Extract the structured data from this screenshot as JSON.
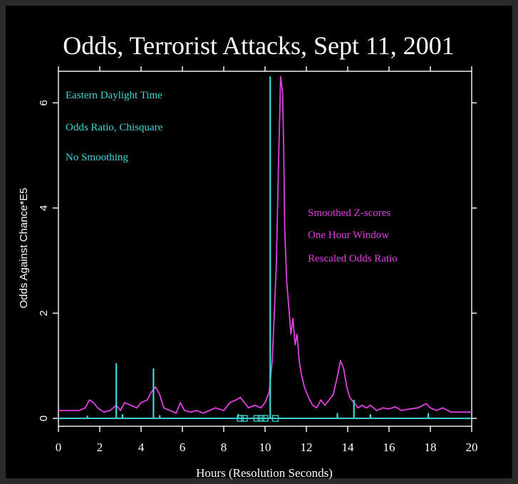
{
  "chart_data": {
    "type": "line",
    "title": "Odds, Terrorist Attacks, Sept 11, 2001",
    "xlabel": "Hours (Resolution Seconds)",
    "ylabel": "Odds Against Chance*E5",
    "xlim": [
      0,
      20
    ],
    "ylim": [
      -0.15,
      6.6
    ],
    "x_ticks": [
      0,
      2,
      4,
      6,
      8,
      10,
      12,
      14,
      16,
      18,
      20
    ],
    "x_tick_labels": [
      "0",
      "2",
      "4",
      "6",
      "8",
      "10",
      "12",
      "14",
      "16",
      "18",
      "20"
    ],
    "y_ticks": [
      0,
      2,
      4,
      6
    ],
    "y_tick_labels": [
      "0",
      "2",
      "4",
      "6"
    ],
    "grid": false,
    "annotations_left": [
      "Eastern Daylight Time",
      "Odds Ratio, Chisquare",
      "No Smoothing"
    ],
    "annotations_right": [
      "Smoothed Z-scores",
      "One Hour Window",
      "Rescaled Odds Ratio"
    ],
    "colors": {
      "background": "#000000",
      "odds_ratio": "#3fd6d6",
      "smoothed": "#e040e0",
      "axis": "#ffffff"
    },
    "series": [
      {
        "type": "spikes",
        "color": "#3fd6d6",
        "x": [
          1.4,
          2.8,
          3.1,
          4.6,
          4.9,
          8.7,
          10.25,
          13.5,
          14.3,
          15.1,
          17.9
        ],
        "values": [
          0.05,
          1.05,
          0.08,
          0.95,
          0.06,
          0.08,
          6.5,
          0.1,
          0.35,
          0.08,
          0.1
        ]
      },
      {
        "type": "line",
        "color": "#e040e0",
        "x": [
          0,
          0.5,
          1.0,
          1.3,
          1.5,
          1.7,
          1.9,
          2.2,
          2.5,
          2.8,
          3.0,
          3.2,
          3.5,
          3.8,
          4.0,
          4.3,
          4.5,
          4.7,
          4.9,
          5.1,
          5.4,
          5.7,
          5.9,
          6.1,
          6.4,
          6.7,
          7.0,
          7.3,
          7.6,
          8.0,
          8.3,
          8.6,
          8.8,
          9.0,
          9.2,
          9.5,
          9.8,
          10.0,
          10.2,
          10.35,
          10.45,
          10.55,
          10.65,
          10.7,
          10.75,
          10.85,
          10.9,
          10.95,
          11.05,
          11.15,
          11.25,
          11.35,
          11.45,
          11.55,
          11.65,
          11.75,
          11.9,
          12.1,
          12.3,
          12.5,
          12.7,
          12.9,
          13.1,
          13.3,
          13.5,
          13.65,
          13.8,
          13.95,
          14.1,
          14.3,
          14.5,
          14.7,
          14.9,
          15.1,
          15.4,
          15.7,
          16.0,
          16.3,
          16.6,
          17.0,
          17.4,
          17.8,
          18.0,
          18.3,
          18.6,
          19.0,
          19.5,
          20.0
        ],
        "values": [
          0.15,
          0.15,
          0.15,
          0.2,
          0.35,
          0.3,
          0.2,
          0.12,
          0.15,
          0.25,
          0.15,
          0.3,
          0.25,
          0.2,
          0.3,
          0.35,
          0.5,
          0.6,
          0.45,
          0.2,
          0.15,
          0.1,
          0.3,
          0.15,
          0.12,
          0.15,
          0.1,
          0.15,
          0.2,
          0.15,
          0.3,
          0.35,
          0.4,
          0.3,
          0.2,
          0.25,
          0.2,
          0.3,
          0.5,
          1.1,
          2.0,
          3.0,
          4.8,
          5.6,
          6.5,
          6.2,
          5.2,
          3.6,
          2.6,
          2.1,
          1.6,
          1.9,
          1.4,
          1.6,
          1.1,
          0.85,
          0.6,
          0.4,
          0.25,
          0.2,
          0.35,
          0.25,
          0.35,
          0.45,
          0.8,
          1.1,
          0.95,
          0.6,
          0.4,
          0.3,
          0.2,
          0.25,
          0.2,
          0.25,
          0.15,
          0.2,
          0.18,
          0.22,
          0.15,
          0.18,
          0.2,
          0.28,
          0.2,
          0.15,
          0.2,
          0.12,
          0.12,
          0.12
        ]
      }
    ],
    "markers": {
      "x": [
        8.8,
        9.0,
        9.6,
        9.8,
        10.0,
        10.5
      ],
      "value": 0
    }
  }
}
